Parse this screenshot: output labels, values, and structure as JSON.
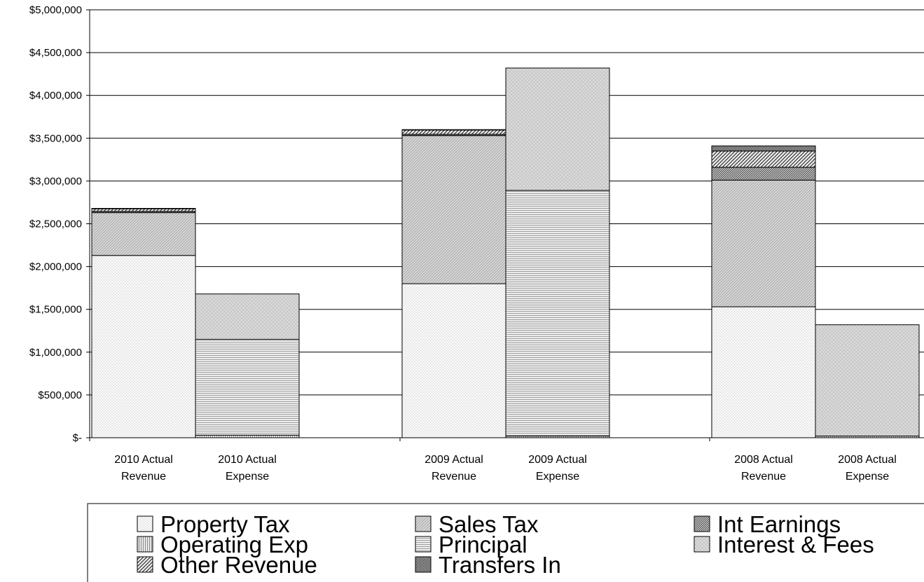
{
  "chart_data": {
    "type": "bar",
    "stacked": true,
    "title": "",
    "xlabel": "",
    "ylabel": "",
    "ylim": [
      0,
      5000000
    ],
    "y_ticks": [
      {
        "value": 0,
        "label": "$-"
      },
      {
        "value": 500000,
        "label": "$500,000"
      },
      {
        "value": 1000000,
        "label": "$1,000,000"
      },
      {
        "value": 1500000,
        "label": "$1,500,000"
      },
      {
        "value": 2000000,
        "label": "$2,000,000"
      },
      {
        "value": 2500000,
        "label": "$2,500,000"
      },
      {
        "value": 3000000,
        "label": "$3,000,000"
      },
      {
        "value": 3500000,
        "label": "$3,500,000"
      },
      {
        "value": 4000000,
        "label": "$4,000,000"
      },
      {
        "value": 4500000,
        "label": "$4,500,000"
      },
      {
        "value": 5000000,
        "label": "$5,000,000"
      }
    ],
    "grid": true,
    "legend_position": "bottom",
    "categories": [
      [
        "2010 Actual",
        "Revenue"
      ],
      [
        "2010 Actual",
        "Expense"
      ],
      [
        "2009 Actual",
        "Revenue"
      ],
      [
        "2009 Actual",
        "Expense"
      ],
      [
        "2008 Actual",
        "Revenue"
      ],
      [
        "2008 Actual",
        "Expense"
      ]
    ],
    "series": [
      {
        "name": "Property Tax",
        "pattern": "property",
        "values": [
          2130000,
          0,
          1800000,
          0,
          1530000,
          0
        ]
      },
      {
        "name": "Sales Tax",
        "pattern": "sales",
        "values": [
          500000,
          0,
          1730000,
          0,
          1480000,
          0
        ]
      },
      {
        "name": "Int Earnings",
        "pattern": "intearn",
        "values": [
          15000,
          0,
          15000,
          0,
          150000,
          0
        ]
      },
      {
        "name": "Other Revenue",
        "pattern": "other",
        "values": [
          30000,
          0,
          50000,
          0,
          190000,
          0
        ]
      },
      {
        "name": "Transfers In",
        "pattern": "transfers",
        "values": [
          5000,
          0,
          5000,
          0,
          60000,
          0
        ]
      },
      {
        "name": "Operating Exp",
        "pattern": "operating",
        "values": [
          0,
          30000,
          0,
          20000,
          0,
          20000
        ]
      },
      {
        "name": "Principal",
        "pattern": "principal",
        "values": [
          0,
          1120000,
          0,
          2870000,
          0,
          0
        ]
      },
      {
        "name": "Interest & Fees",
        "pattern": "interest",
        "values": [
          0,
          530000,
          0,
          1430000,
          0,
          1300000
        ]
      }
    ]
  },
  "legend": {
    "items": [
      {
        "label": "Property Tax",
        "pattern": "property"
      },
      {
        "label": "Sales Tax",
        "pattern": "sales"
      },
      {
        "label": "Int Earnings",
        "pattern": "intearn"
      },
      {
        "label": "Operating Exp",
        "pattern": "operating"
      },
      {
        "label": "Principal",
        "pattern": "principal"
      },
      {
        "label": "Interest & Fees",
        "pattern": "interest"
      },
      {
        "label": "Other Revenue",
        "pattern": "other"
      },
      {
        "label": "Transfers In",
        "pattern": "transfers"
      }
    ]
  }
}
